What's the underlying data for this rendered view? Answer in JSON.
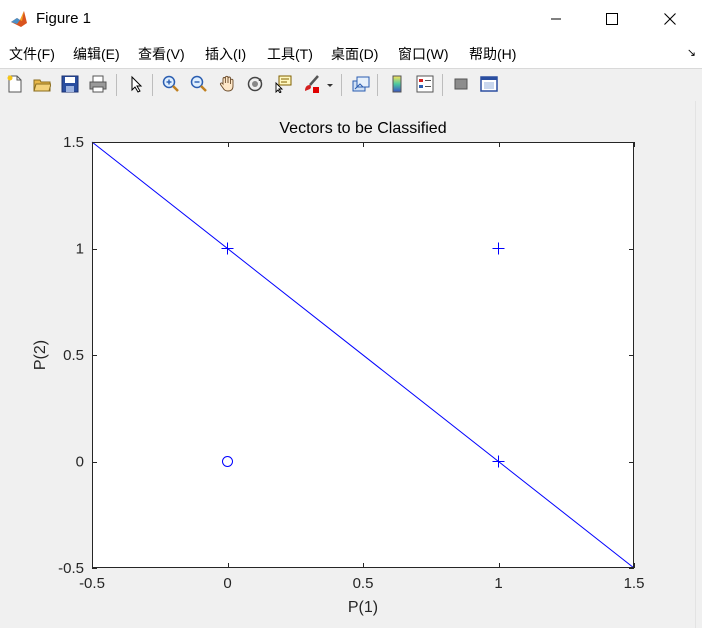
{
  "window": {
    "title": "Figure 1",
    "minimize_label": "minimize",
    "maximize_label": "maximize",
    "close_label": "close"
  },
  "menu": {
    "items": [
      {
        "label": "文件(F)"
      },
      {
        "label": "编辑(E)"
      },
      {
        "label": "查看(V)"
      },
      {
        "label": "插入(I)"
      },
      {
        "label": "工具(T)"
      },
      {
        "label": "桌面(D)"
      },
      {
        "label": "窗口(W)"
      },
      {
        "label": "帮助(H)"
      }
    ]
  },
  "toolbar": {
    "buttons": [
      "new-figure-icon",
      "open-file-icon",
      "save-icon",
      "print-icon",
      "select-arrow-icon",
      "zoom-in-icon",
      "zoom-out-icon",
      "pan-hand-icon",
      "rotate-3d-icon",
      "data-cursor-icon",
      "brush-icon",
      "link-plot-icon",
      "colorbar-icon",
      "legend-icon",
      "hide-plot-tools-icon",
      "show-plot-tools-icon"
    ]
  },
  "colors": {
    "series": "#0000ff",
    "axes": "#262626",
    "plot_bg": "#ffffff",
    "figure_bg": "#f0f0f0"
  },
  "chart_data": {
    "type": "scatter",
    "title": "Vectors to be Classified",
    "xlabel": "P(1)",
    "ylabel": "P(2)",
    "xlim": [
      -0.5,
      1.5
    ],
    "ylim": [
      -0.5,
      1.5
    ],
    "xticks": [
      -0.5,
      0,
      0.5,
      1,
      1.5
    ],
    "yticks": [
      -0.5,
      0,
      0.5,
      1,
      1.5
    ],
    "xtick_labels": [
      "-0.5",
      "0",
      "0.5",
      "1",
      "1.5"
    ],
    "ytick_labels": [
      "-0.5",
      "0",
      "0.5",
      "1",
      "1.5"
    ],
    "grid": false,
    "series": [
      {
        "marker": "plus",
        "color": "#0000ff",
        "points": [
          [
            0,
            1
          ],
          [
            1,
            1
          ],
          [
            1,
            0
          ]
        ]
      },
      {
        "marker": "circle",
        "color": "#0000ff",
        "points": [
          [
            0,
            0
          ]
        ]
      }
    ],
    "line": {
      "color": "#0000ff",
      "points": [
        [
          -0.5,
          1.5
        ],
        [
          1.5,
          -0.5
        ]
      ]
    }
  }
}
